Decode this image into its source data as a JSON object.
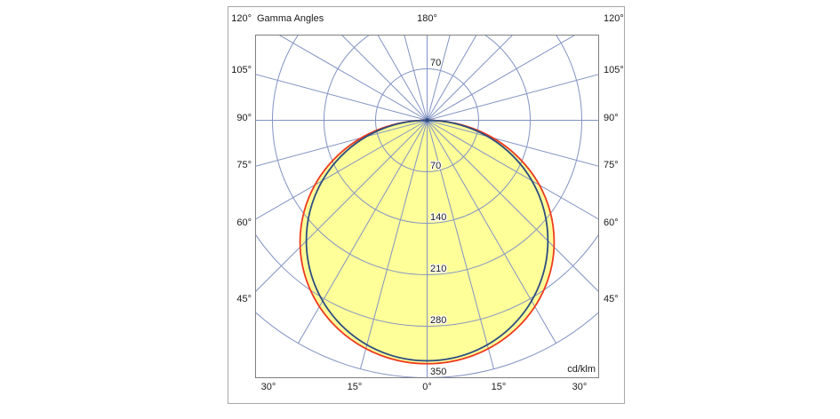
{
  "chart_data": {
    "type": "polar",
    "title": "Gamma Angles",
    "unit": "cd/klm",
    "top_axis_label": "180°",
    "side_axis_labels": [
      "120°",
      "105°",
      "90°",
      "75°",
      "60°",
      "45°"
    ],
    "bottom_axis_labels": [
      "30°",
      "15°",
      "0°",
      "15°",
      "30°"
    ],
    "radius_ticks": [
      70,
      140,
      210,
      280,
      350
    ],
    "radius_max": 350,
    "angle_grid_step_deg": 15,
    "series": [
      {
        "name": "red-curve",
        "color": "#ee3b20",
        "peak_cd_klm": 331,
        "width_cd_klm": 345
      },
      {
        "name": "blue-curve",
        "color": "#2d4d80",
        "peak_cd_klm": 327,
        "width_cd_klm": 328
      }
    ],
    "fill_color": "#ffff99",
    "grid_color": "#8393c3",
    "axis_color": "#7f7f7f",
    "text_color": "#1a1a1a",
    "grid": "polar: rays every 15° plus 5 concentric radius circles",
    "legend": "none"
  }
}
